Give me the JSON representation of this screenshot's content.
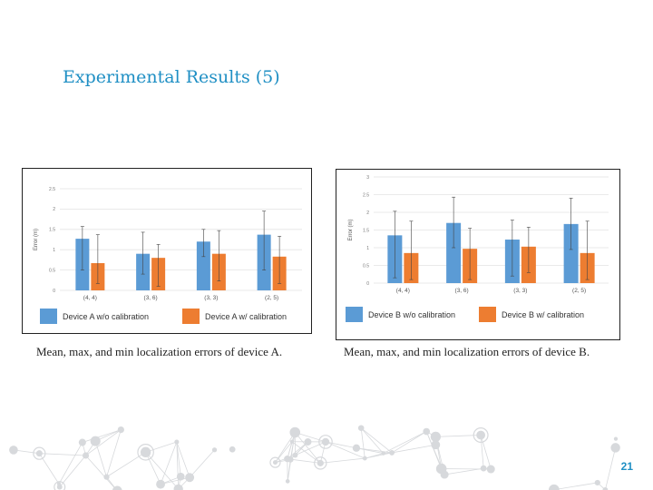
{
  "slide": {
    "title": "Experimental Results (5)",
    "page_number": "21"
  },
  "colors": {
    "title": "#1f8fc4",
    "series_without": "#5b9bd5",
    "series_with": "#ed7d31",
    "page_number": "#1f8fc4",
    "network": "#d7d9dc"
  },
  "chart_data": [
    {
      "type": "bar",
      "categories": [
        "(4, 4)",
        "(3, 6)",
        "(3, 3)",
        "(2, 5)"
      ],
      "ylabel": "Error (m)",
      "ylim": [
        0,
        2.5
      ],
      "yticks": [
        "0",
        "0.5",
        "1",
        "1.5",
        "2",
        "2.5"
      ],
      "grid": true,
      "legend_position": "bottom",
      "error_bars": true,
      "series": [
        {
          "name": "Device A w/o calibration",
          "values": [
            1.27,
            0.9,
            1.2,
            1.37
          ],
          "max": [
            1.57,
            1.43,
            1.5,
            1.95
          ],
          "min": [
            0.5,
            0.4,
            0.83,
            0.5
          ]
        },
        {
          "name": "Device A w/ calibration",
          "values": [
            0.67,
            0.8,
            0.9,
            0.83
          ],
          "max": [
            1.37,
            1.13,
            1.47,
            1.33
          ],
          "min": [
            0.17,
            0.1,
            0.23,
            0.17
          ]
        }
      ],
      "caption": "Mean, max, and min localization errors of device A."
    },
    {
      "type": "bar",
      "categories": [
        "(4, 4)",
        "(3, 6)",
        "(3, 3)",
        "(2, 5)"
      ],
      "ylabel": "Error (m)",
      "ylim": [
        0,
        3
      ],
      "yticks": [
        "0",
        "0.5",
        "1",
        "1.5",
        "2",
        "2.5",
        "3"
      ],
      "grid": true,
      "legend_position": "bottom",
      "error_bars": true,
      "series": [
        {
          "name": "Device B w/o calibration",
          "values": [
            1.35,
            1.7,
            1.23,
            1.67
          ],
          "max": [
            2.03,
            2.43,
            1.78,
            2.4
          ],
          "min": [
            0.15,
            1.0,
            0.2,
            0.95
          ]
        },
        {
          "name": "Device B w/ calibration",
          "values": [
            0.85,
            0.97,
            1.03,
            0.85
          ],
          "max": [
            1.75,
            1.55,
            1.58,
            1.75
          ],
          "min": [
            0.1,
            0.1,
            0.3,
            0.1
          ]
        }
      ],
      "caption": "Mean, max, and min localization errors of device B."
    }
  ]
}
